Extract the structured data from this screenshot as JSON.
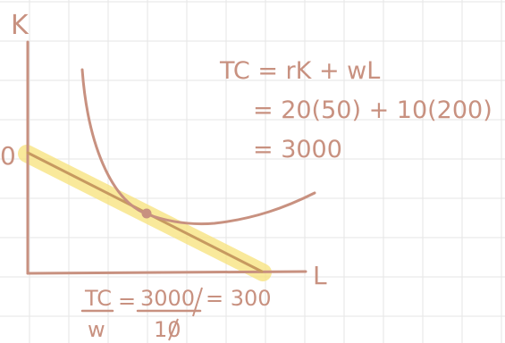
{
  "axes": {
    "y_label": "K",
    "x_label": "L",
    "y_intercept_label": "0"
  },
  "equation": {
    "line1": "TC = rK + wL",
    "line2": "= 20(50) + 10(200)",
    "line3": "= 3000"
  },
  "intercept_calc": {
    "num_left": "TC",
    "den_left": "w",
    "equals1": "=",
    "num_right": "3000",
    "den_right": "10",
    "result": "= 300"
  },
  "colors": {
    "ink": "#c89180",
    "line": "#c79a60",
    "highlight": "#f7e27a",
    "grid": "#e6e6e6"
  }
}
